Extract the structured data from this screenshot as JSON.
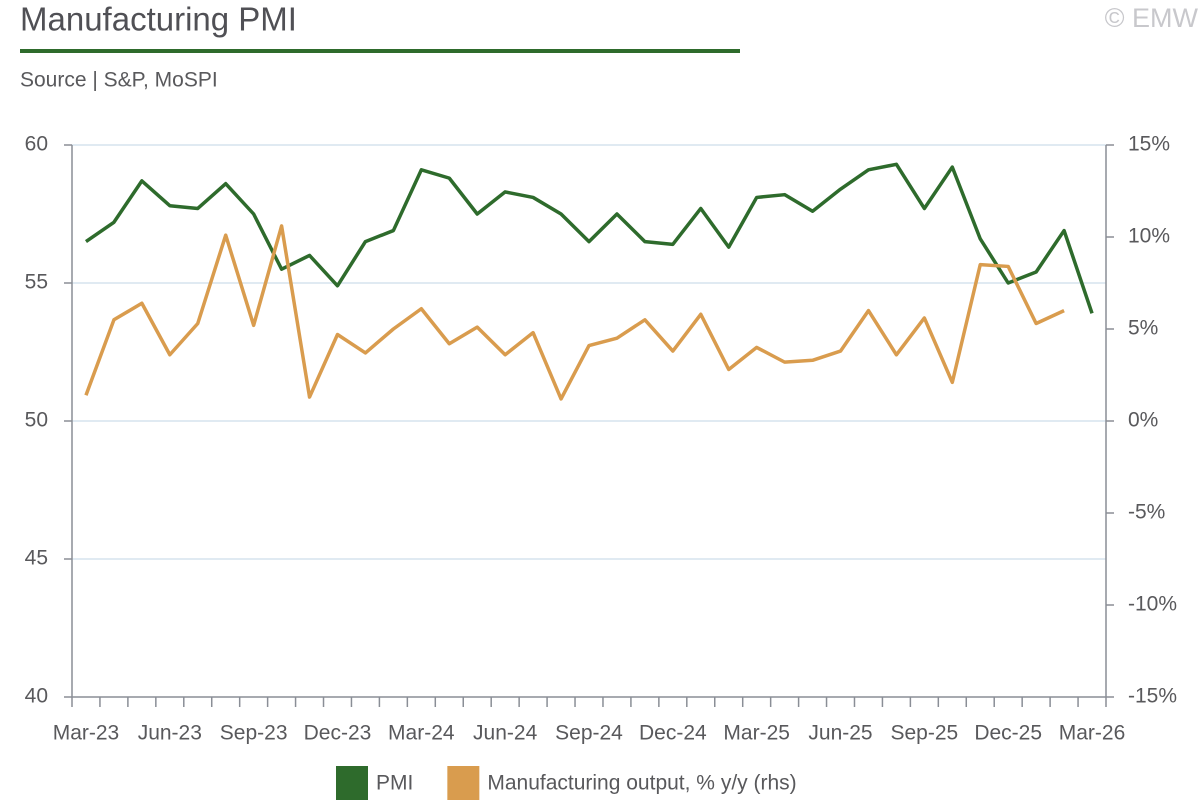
{
  "chart_data": {
    "type": "line",
    "title": "Manufacturing PMI",
    "subtitle": "Source | S&P, MoSPI",
    "copyright": "© EMW",
    "categories": [
      "Mar-23",
      null,
      null,
      "Jun-23",
      null,
      null,
      "Sep-23",
      null,
      null,
      "Dec-23",
      null,
      null,
      "Mar-24",
      null,
      null,
      "Jun-24",
      null,
      null,
      "Sep-24",
      null,
      null,
      "Dec-24",
      null,
      null,
      "Mar-25",
      null,
      null,
      "Jun-25",
      null,
      null,
      "Sep-25",
      null,
      null,
      "Dec-25",
      null,
      null,
      "Mar-26"
    ],
    "series": [
      {
        "name": "PMI",
        "color": "#2e6b2c",
        "values": [
          56.5,
          57.2,
          58.7,
          57.8,
          57.7,
          58.6,
          57.5,
          55.5,
          56.0,
          54.9,
          56.5,
          56.9,
          59.1,
          58.8,
          57.5,
          58.3,
          58.1,
          57.5,
          56.5,
          57.5,
          56.5,
          56.4,
          57.7,
          56.3,
          58.1,
          58.2,
          57.6,
          58.4,
          59.1,
          59.3,
          57.7,
          59.2,
          56.6,
          55.0,
          55.4,
          56.9,
          53.9
        ]
      },
      {
        "name": "Manufacturing output, % y/y (rhs)",
        "color": "#d99c4e",
        "axis": "y2",
        "values": [
          1.4,
          5.5,
          6.4,
          3.6,
          5.3,
          10.1,
          5.2,
          10.6,
          1.3,
          4.7,
          3.7,
          5.0,
          6.1,
          4.2,
          5.1,
          3.6,
          4.8,
          1.2,
          4.1,
          4.5,
          5.5,
          3.8,
          5.8,
          2.8,
          4.0,
          3.2,
          3.3,
          3.8,
          6.0,
          3.6,
          5.6,
          2.1,
          8.5,
          8.4,
          5.3,
          6.0,
          null
        ]
      }
    ],
    "ylim": [
      40,
      60
    ],
    "yticks": [
      40,
      45,
      50,
      55,
      60
    ],
    "y2lim": [
      -15,
      15
    ],
    "y2ticks": [
      {
        "value": -15,
        "label": "-15%"
      },
      {
        "value": -10,
        "label": "-10%"
      },
      {
        "value": -5,
        "label": "-5%"
      },
      {
        "value": 0,
        "label": "0%"
      },
      {
        "value": 5,
        "label": "5%"
      },
      {
        "value": 10,
        "label": "10%"
      },
      {
        "value": 15,
        "label": "15%"
      }
    ],
    "grid": true
  }
}
